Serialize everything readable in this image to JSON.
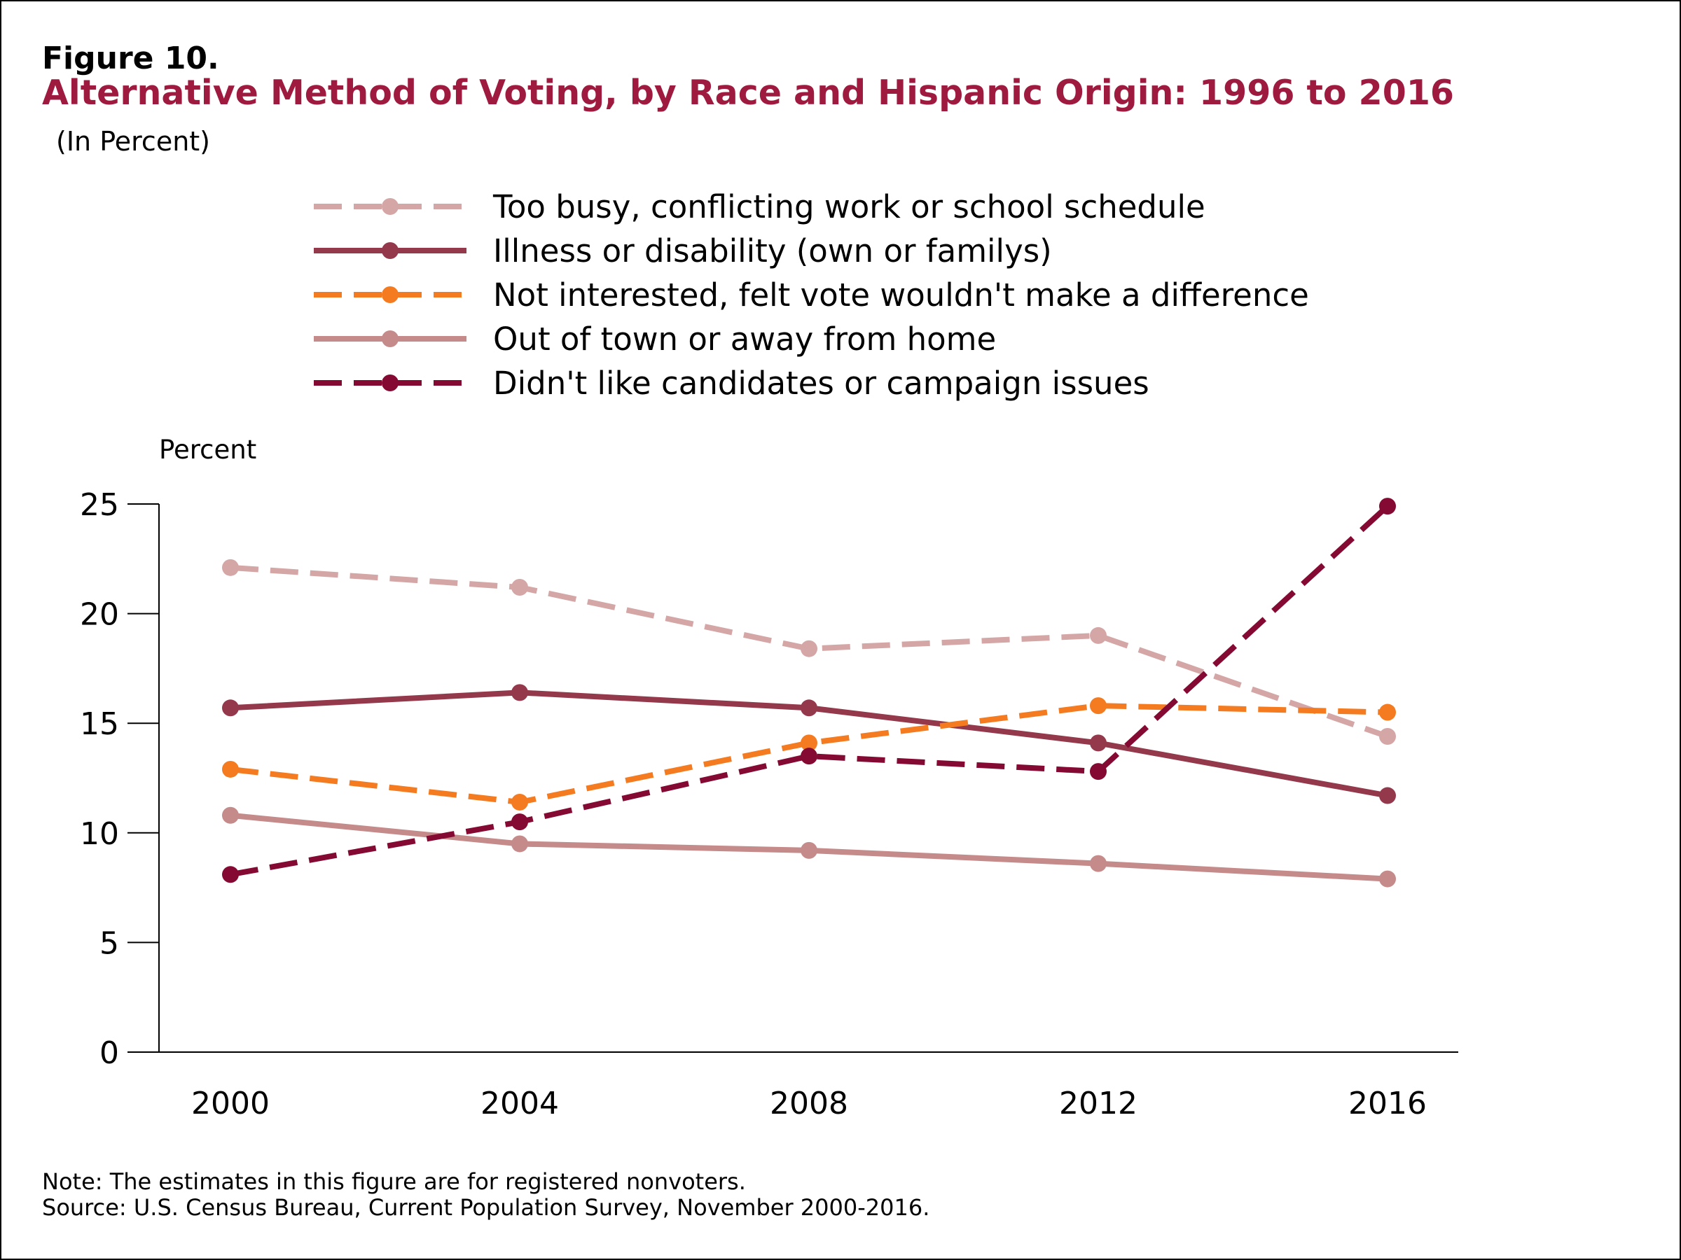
{
  "figure": {
    "label": "Figure 10.",
    "title": "Alternative Method of Voting, by Race and Hispanic Origin: 1996 to 2016",
    "subtitle": "(In Percent)"
  },
  "footer": {
    "note": "Note: The estimates in this figure are for registered nonvoters.",
    "source": "Source: U.S. Census Bureau, Current Population Survey, November 2000-2016."
  },
  "chart_data": {
    "type": "line",
    "title": "Alternative Method of Voting, by Race and Hispanic Origin: 1996 to 2016",
    "xlabel": "",
    "ylabel": "Percent",
    "x": [
      "2000",
      "2004",
      "2008",
      "2012",
      "2016"
    ],
    "ylim": [
      0,
      25
    ],
    "yticks": [
      0,
      5,
      10,
      15,
      20,
      25
    ],
    "grid": false,
    "legend_position": "top",
    "series": [
      {
        "name": "Too busy, conflicting work or school schedule",
        "values": [
          22.1,
          21.2,
          18.4,
          19.0,
          14.4
        ],
        "color": "#d4a6a6",
        "dashed": true
      },
      {
        "name": "Illness or disability (own or familys)",
        "values": [
          15.7,
          16.4,
          15.7,
          14.1,
          11.7
        ],
        "color": "#94394c",
        "dashed": false
      },
      {
        "name": "Not interested, felt vote wouldn't make a difference",
        "values": [
          12.9,
          11.4,
          14.1,
          15.8,
          15.5
        ],
        "color": "#f47b20",
        "dashed": true
      },
      {
        "name": "Out of town or away from home",
        "values": [
          10.8,
          9.5,
          9.2,
          8.6,
          7.9
        ],
        "color": "#c58a8a",
        "dashed": false
      },
      {
        "name": "Didn't like candidates or campaign issues",
        "values": [
          8.1,
          10.5,
          13.5,
          12.8,
          24.9
        ],
        "color": "#850a33",
        "dashed": true
      }
    ]
  }
}
